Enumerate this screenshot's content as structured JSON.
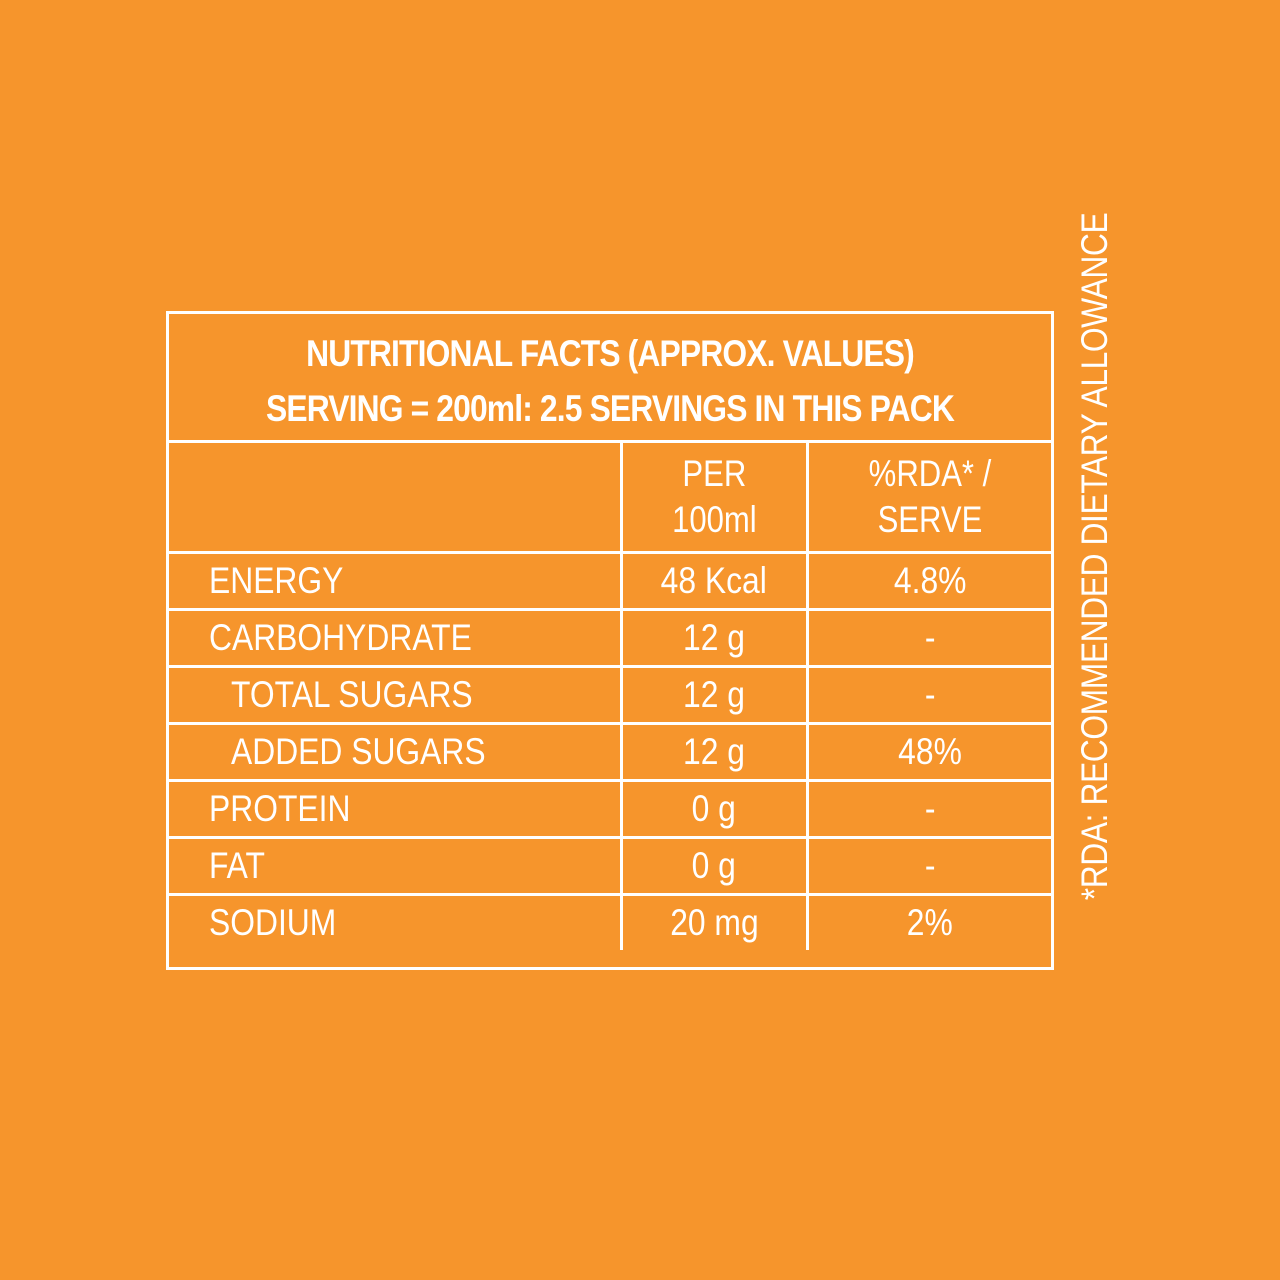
{
  "colors": {
    "background": "#F6952C",
    "foreground": "#FFFFFF"
  },
  "title": {
    "line1": "NUTRITIONAL FACTS  (APPROX. VALUES)",
    "line2": "SERVING = 200ml: 2.5 SERVINGS IN THIS PACK"
  },
  "columns": {
    "name": "",
    "per_line1": "PER",
    "per_line2": "100ml",
    "rda_line1": "%RDA* /",
    "rda_line2": "SERVE"
  },
  "rows": [
    {
      "name": "ENERGY",
      "per": "48 Kcal",
      "rda": "4.8%"
    },
    {
      "name": "CARBOHYDRATE",
      "per": "12 g",
      "rda": "-"
    },
    {
      "name": "TOTAL SUGARS",
      "per": "12 g",
      "rda": "-"
    },
    {
      "name": "ADDED SUGARS",
      "per": "12 g",
      "rda": "48%"
    },
    {
      "name": "PROTEIN",
      "per": "0 g",
      "rda": "-"
    },
    {
      "name": "FAT",
      "per": "0 g",
      "rda": "-"
    },
    {
      "name": "SODIUM",
      "per": "20 mg",
      "rda": "2%"
    }
  ],
  "footnote": "*RDA: RECOMMENDED DIETARY ALLOWANCE"
}
